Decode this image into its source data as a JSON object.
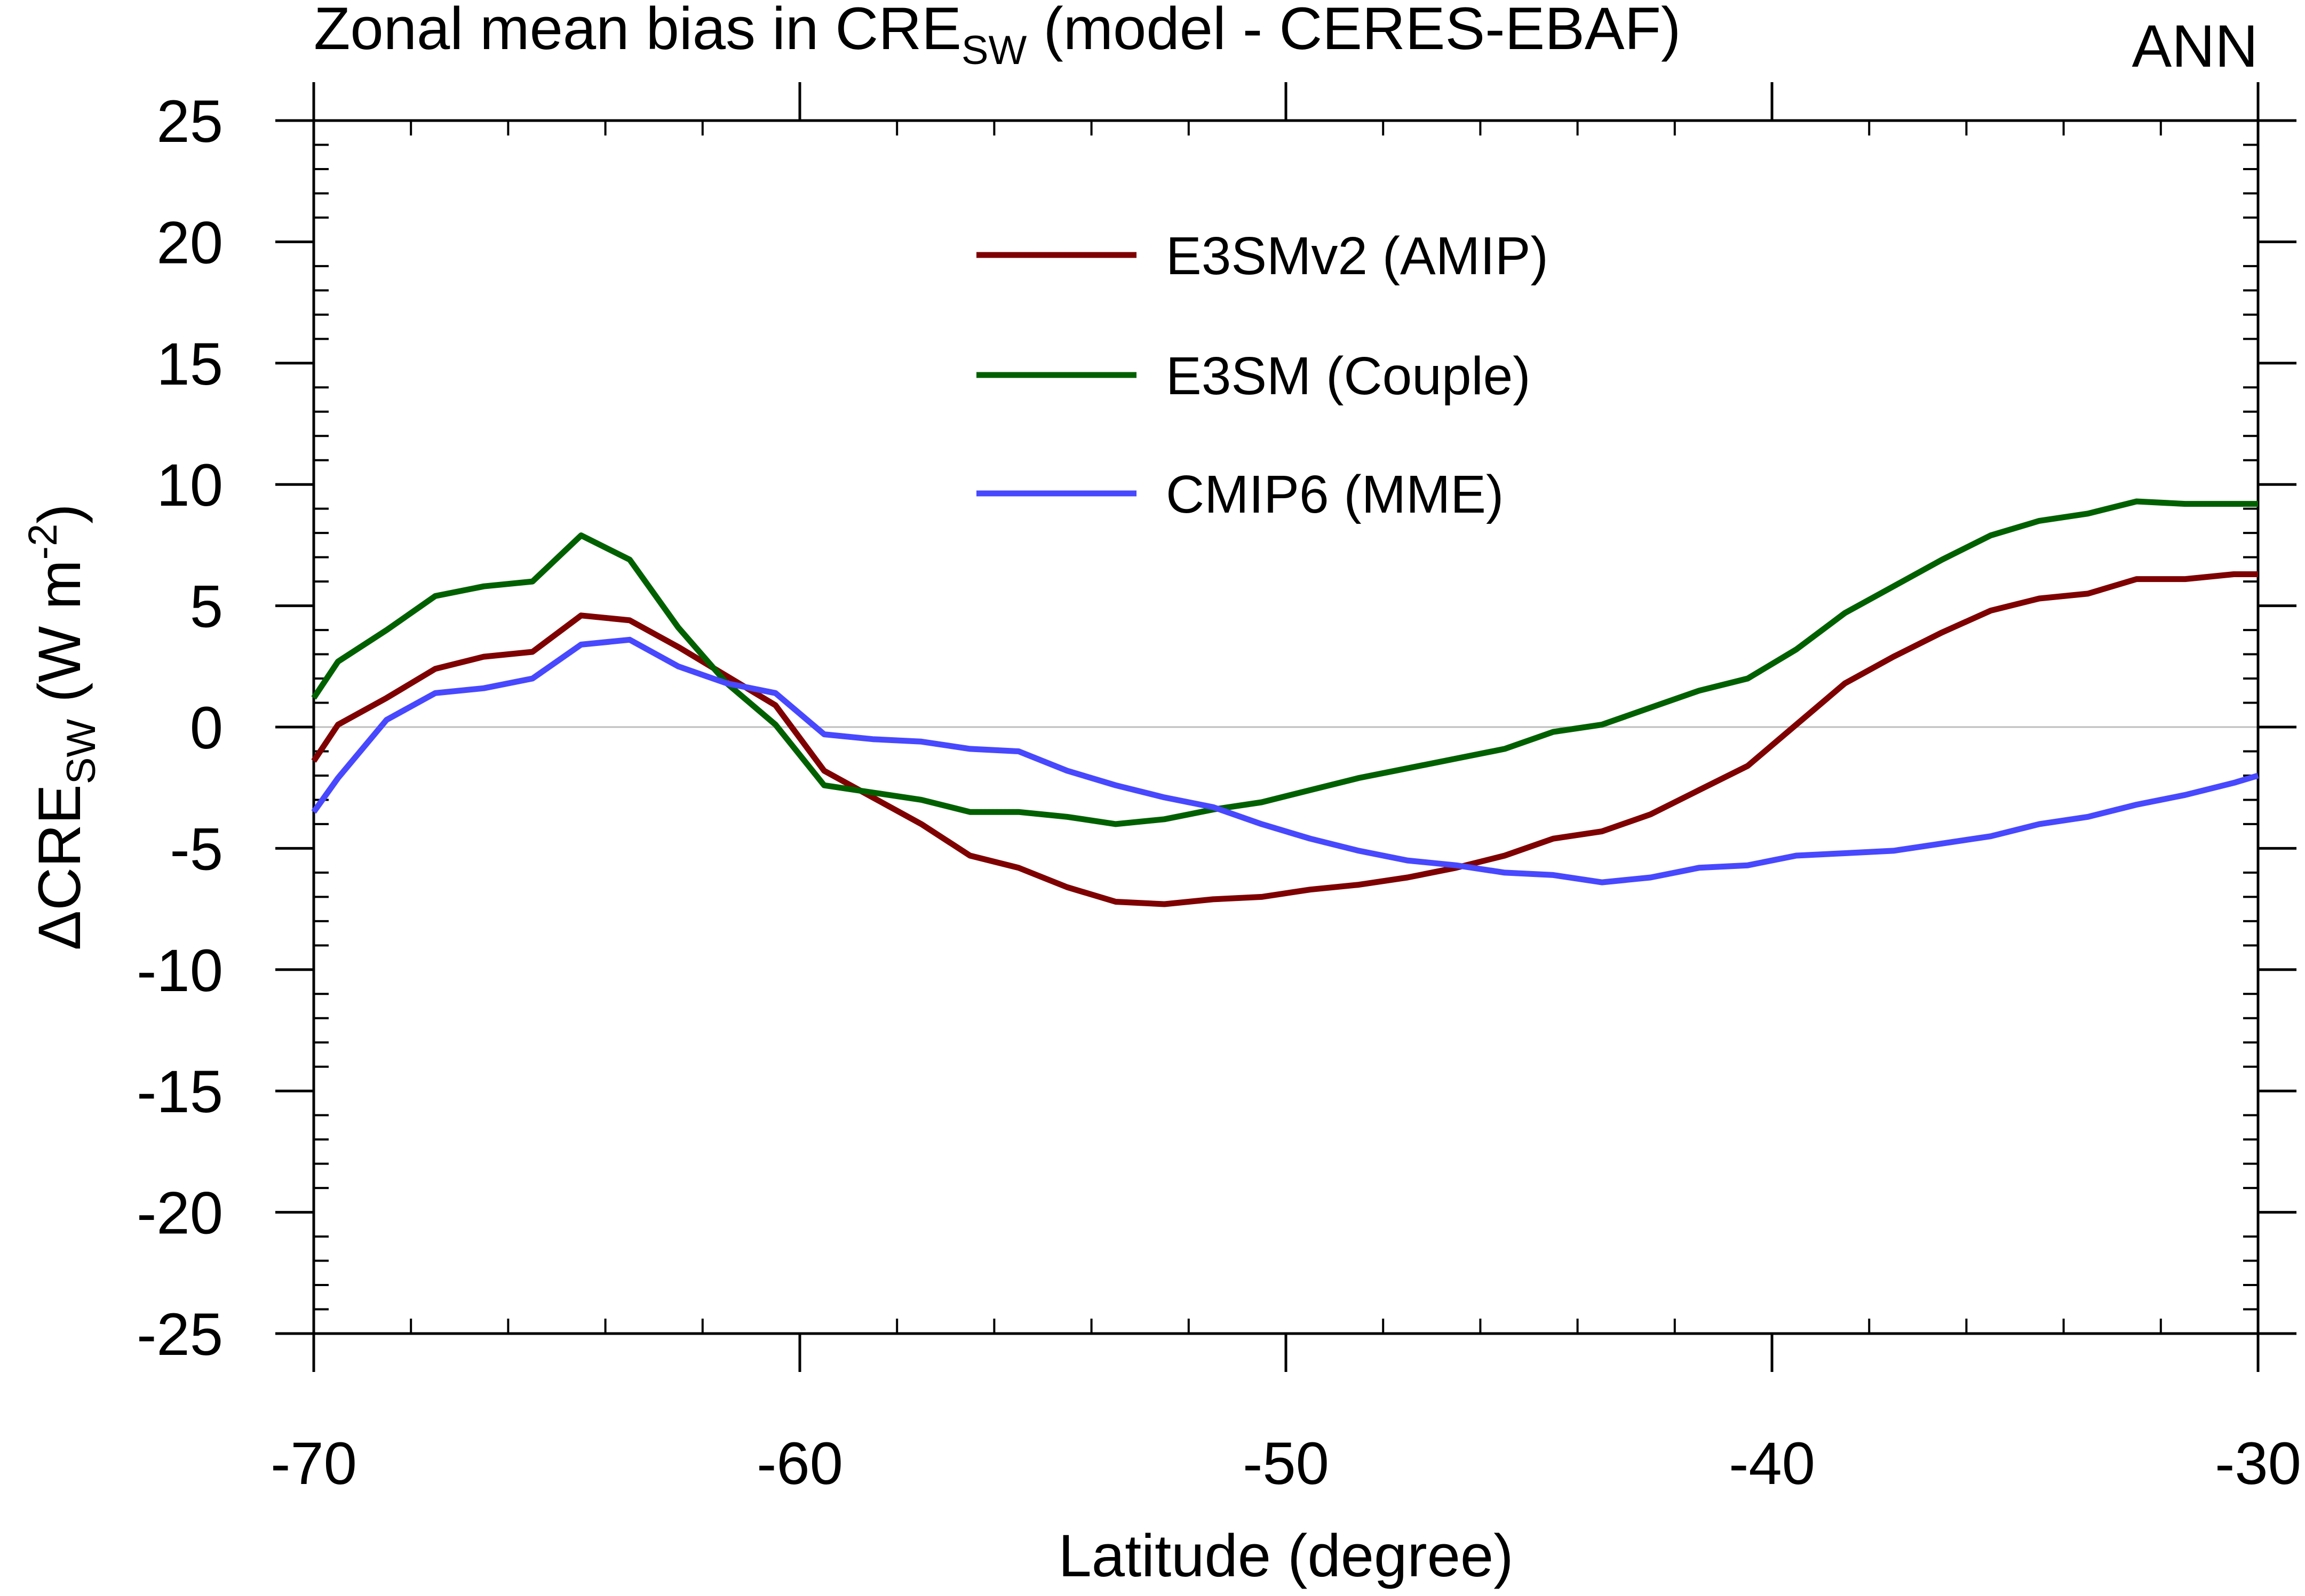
{
  "chart_data": {
    "type": "line",
    "title_main": "Zonal mean bias in CRE",
    "title_sub": "SW",
    "title_tail": " (model - CERES-EBAF)",
    "season_label": "ANN",
    "xlabel": "Latitude (degree)",
    "ylabel_delta": "Δ",
    "ylabel_cre": "CRE",
    "ylabel_sub": "SW",
    "ylabel_units": " (W m",
    "ylabel_exp": "-2",
    "ylabel_close": ")",
    "xlim": [
      -70,
      -30
    ],
    "ylim": [
      -25,
      25
    ],
    "x_ticks": [
      -70,
      -60,
      -50,
      -40,
      -30
    ],
    "x_tick_labels": [
      "-70",
      "-60",
      "-50",
      "-40",
      "-30"
    ],
    "y_ticks": [
      25,
      20,
      15,
      10,
      5,
      0,
      -5,
      -10,
      -15,
      -20,
      -25
    ],
    "y_tick_labels": [
      "25",
      "20",
      "15",
      "10",
      "5",
      "0",
      "-5",
      "-10",
      "-15",
      "-20",
      "-25"
    ],
    "x": [
      -70,
      -69.5,
      -68.5,
      -67.5,
      -66.5,
      -65.5,
      -64.5,
      -63.5,
      -62.5,
      -61.5,
      -60.5,
      -59.5,
      -58.5,
      -57.5,
      -56.5,
      -55.5,
      -54.5,
      -53.5,
      -52.5,
      -51.5,
      -50.5,
      -49.5,
      -48.5,
      -47.5,
      -46.5,
      -45.5,
      -44.5,
      -43.5,
      -42.5,
      -41.5,
      -40.5,
      -39.5,
      -38.5,
      -37.5,
      -36.5,
      -35.5,
      -34.5,
      -33.5,
      -32.5,
      -31.5,
      -30.5,
      -30
    ],
    "series": [
      {
        "name": "E3SMv2 (AMIP)",
        "color": "#7f0000",
        "values": [
          -1.4,
          0.1,
          1.2,
          2.4,
          2.9,
          3.1,
          4.6,
          4.4,
          3.3,
          2.1,
          0.9,
          -1.8,
          -2.9,
          -4.0,
          -5.3,
          -5.8,
          -6.6,
          -7.2,
          -7.3,
          -7.1,
          -7.0,
          -6.7,
          -6.5,
          -6.2,
          -5.8,
          -5.3,
          -4.6,
          -4.3,
          -3.6,
          -2.6,
          -1.6,
          0.1,
          1.8,
          2.9,
          3.9,
          4.8,
          5.3,
          5.5,
          6.1,
          6.1,
          6.3,
          6.3
        ]
      },
      {
        "name": "E3SM (Couple)",
        "color": "#006000",
        "values": [
          1.2,
          2.7,
          4.0,
          5.4,
          5.8,
          6.0,
          7.9,
          6.9,
          4.1,
          1.8,
          0.1,
          -2.4,
          -2.7,
          -3.0,
          -3.5,
          -3.5,
          -3.7,
          -4.0,
          -3.8,
          -3.4,
          -3.1,
          -2.6,
          -2.1,
          -1.7,
          -1.3,
          -0.9,
          -0.2,
          0.1,
          0.8,
          1.5,
          2.0,
          3.2,
          4.7,
          5.8,
          6.9,
          7.9,
          8.5,
          8.8,
          9.3,
          9.2,
          9.2,
          9.2
        ]
      },
      {
        "name": "CMIP6 (MME)",
        "color": "#4848ff",
        "values": [
          -3.5,
          -2.1,
          0.3,
          1.4,
          1.6,
          2.0,
          3.4,
          3.6,
          2.5,
          1.8,
          1.4,
          -0.3,
          -0.5,
          -0.6,
          -0.9,
          -1.0,
          -1.8,
          -2.4,
          -2.9,
          -3.3,
          -4.0,
          -4.6,
          -5.1,
          -5.5,
          -5.7,
          -6.0,
          -6.1,
          -6.4,
          -6.2,
          -5.8,
          -5.7,
          -5.3,
          -5.2,
          -5.1,
          -4.8,
          -4.5,
          -4.0,
          -3.7,
          -3.2,
          -2.8,
          -2.3,
          -2.0
        ]
      }
    ],
    "legend_position": "upper-center",
    "zero_line": true
  }
}
